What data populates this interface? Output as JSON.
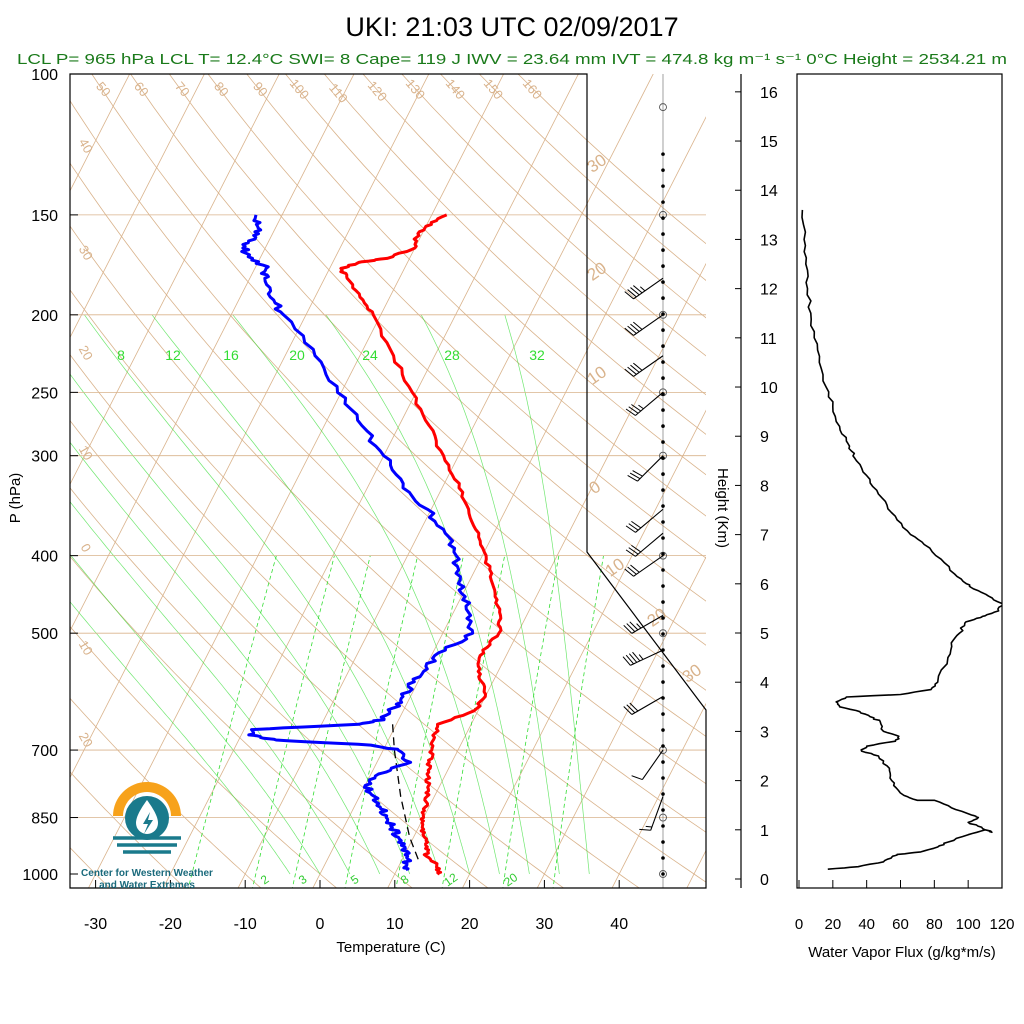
{
  "title": "UKI: 21:03 UTC 02/09/2017",
  "subtitle": "LCL P= 965 hPa  LCL T= 12.4°C  SWI= 8  Cape= 119 J  IWV = 23.64 mm  IVT = 474.8 kg m⁻¹ s⁻¹  0°C Height = 2534.21 m",
  "logo_text": [
    "Center for Western Weather",
    "and Water Extremes"
  ],
  "colors": {
    "title": "#000000",
    "subtitle": "#1a7a1a",
    "temperature": "#ff0000",
    "dewpoint": "#0000ff",
    "isotherm": "#d9b38c",
    "mixing_ratio": "#33dd33",
    "moist_adiabat": "#33dd33",
    "dry_adiabat": "#d9b38c",
    "parcel": "#000000",
    "logo_orange": "#f7a21b",
    "logo_teal": "#1a7a8c"
  },
  "chart_data": [
    {
      "type": "line",
      "name": "skew-t",
      "xlabel": "Temperature (C)",
      "ylabel": "P (hPa)",
      "x_ticks": [
        "-30",
        "-20",
        "-10",
        "0",
        "10",
        "20",
        "30",
        "40"
      ],
      "y_ticks": [
        "100",
        "150",
        "200",
        "250",
        "300",
        "400",
        "500",
        "700",
        "850",
        "1000"
      ],
      "ylim": [
        1000,
        100
      ],
      "mixing_ratio_labels": [
        "2",
        "3",
        "5",
        "8",
        "12",
        "20"
      ],
      "moist_adiabat_labels": [
        "8",
        "12",
        "16",
        "20",
        "24",
        "28",
        "32"
      ],
      "dry_adiabat_labels": [
        "50",
        "60",
        "70",
        "80",
        "90",
        "100",
        "110",
        "120",
        "130",
        "140",
        "150",
        "160"
      ],
      "isotherm_labels_left": [
        "40",
        "30",
        "20",
        "10",
        "0",
        "10",
        "20"
      ],
      "isotherm_labels_right": [
        "30",
        "20",
        "10",
        "0",
        "10",
        "20",
        "30"
      ],
      "temperature": [
        [
          1000,
          16.0
        ],
        [
          990,
          15.5
        ],
        [
          975,
          15.0
        ],
        [
          950,
          13.0
        ],
        [
          925,
          12.5
        ],
        [
          900,
          11.5
        ],
        [
          875,
          10.5
        ],
        [
          850,
          10.0
        ],
        [
          825,
          9.5
        ],
        [
          800,
          9.0
        ],
        [
          775,
          8.5
        ],
        [
          750,
          7.5
        ],
        [
          725,
          7.0
        ],
        [
          700,
          6.5
        ],
        [
          675,
          6.0
        ],
        [
          650,
          5.5
        ],
        [
          625,
          9.5
        ],
        [
          600,
          10.0
        ],
        [
          575,
          8.5
        ],
        [
          550,
          7.0
        ],
        [
          525,
          6.5
        ],
        [
          500,
          7.5
        ],
        [
          475,
          6.5
        ],
        [
          450,
          4.5
        ],
        [
          425,
          2.5
        ],
        [
          400,
          0.5
        ],
        [
          375,
          -2.0
        ],
        [
          350,
          -5.0
        ],
        [
          325,
          -8.0
        ],
        [
          300,
          -12.0
        ],
        [
          275,
          -16.0
        ],
        [
          250,
          -20.5
        ],
        [
          225,
          -25.5
        ],
        [
          200,
          -31.0
        ],
        [
          190,
          -34.0
        ],
        [
          180,
          -37.0
        ],
        [
          175,
          -38.5
        ],
        [
          172,
          -36.5
        ],
        [
          170,
          -33.0
        ],
        [
          165,
          -30.0
        ],
        [
          160,
          -30.5
        ],
        [
          155,
          -30.0
        ],
        [
          150,
          -28.0
        ]
      ],
      "dewpoint": [
        [
          990,
          11.5
        ],
        [
          975,
          11.0
        ],
        [
          950,
          10.5
        ],
        [
          925,
          9.5
        ],
        [
          900,
          8.0
        ],
        [
          875,
          6.5
        ],
        [
          850,
          5.0
        ],
        [
          825,
          3.5
        ],
        [
          800,
          2.0
        ],
        [
          775,
          0.0
        ],
        [
          750,
          1.0
        ],
        [
          725,
          4.5
        ],
        [
          700,
          2.0
        ],
        [
          690,
          -2.0
        ],
        [
          680,
          -15.0
        ],
        [
          670,
          -19.0
        ],
        [
          660,
          -19.0
        ],
        [
          650,
          -5.0
        ],
        [
          640,
          -2.0
        ],
        [
          620,
          -1.5
        ],
        [
          600,
          -1.0
        ],
        [
          575,
          -0.5
        ],
        [
          550,
          0.0
        ],
        [
          525,
          1.5
        ],
        [
          500,
          4.0
        ],
        [
          475,
          2.5
        ],
        [
          450,
          0.5
        ],
        [
          425,
          -1.5
        ],
        [
          400,
          -3.5
        ],
        [
          375,
          -6.5
        ],
        [
          350,
          -10.5
        ],
        [
          325,
          -15.5
        ],
        [
          300,
          -20.0
        ],
        [
          275,
          -25.0
        ],
        [
          250,
          -30.5
        ],
        [
          225,
          -36.0
        ],
        [
          200,
          -43.0
        ],
        [
          190,
          -46.0
        ],
        [
          180,
          -48.0
        ],
        [
          175,
          -48.5
        ],
        [
          170,
          -51.0
        ],
        [
          165,
          -53.0
        ],
        [
          160,
          -52.0
        ],
        [
          155,
          -52.5
        ],
        [
          150,
          -53.5
        ]
      ],
      "parcel": [
        [
          650,
          -0.5
        ],
        [
          700,
          1.5
        ],
        [
          800,
          5.5
        ],
        [
          900,
          9.5
        ],
        [
          965,
          12.4
        ]
      ],
      "wind_barbs": [
        {
          "p": 180,
          "dir": 235,
          "spd": 45
        },
        {
          "p": 200,
          "dir": 235,
          "spd": 40
        },
        {
          "p": 225,
          "dir": 235,
          "spd": 40
        },
        {
          "p": 250,
          "dir": 230,
          "spd": 35
        },
        {
          "p": 300,
          "dir": 225,
          "spd": 30
        },
        {
          "p": 350,
          "dir": 230,
          "spd": 30
        },
        {
          "p": 375,
          "dir": 230,
          "spd": 30
        },
        {
          "p": 400,
          "dir": 235,
          "spd": 30
        },
        {
          "p": 475,
          "dir": 240,
          "spd": 35
        },
        {
          "p": 525,
          "dir": 245,
          "spd": 45
        },
        {
          "p": 600,
          "dir": 240,
          "spd": 30
        },
        {
          "p": 700,
          "dir": 215,
          "spd": 10
        },
        {
          "p": 800,
          "dir": 200,
          "spd": 15
        }
      ]
    },
    {
      "type": "line",
      "name": "water-vapor-flux",
      "xlabel": "Water Vapor Flux (g/kg*m/s)",
      "ylabel": "Height (Km)",
      "xlim": [
        0,
        120
      ],
      "ylim": [
        0,
        16.5
      ],
      "x_ticks": [
        "0",
        "20",
        "40",
        "60",
        "80",
        "100",
        "120"
      ],
      "y_ticks": [
        "0",
        "1",
        "2",
        "3",
        "4",
        "5",
        "6",
        "7",
        "8",
        "9",
        "10",
        "11",
        "12",
        "13",
        "14",
        "15",
        "16"
      ],
      "profile": [
        [
          17,
          0.2
        ],
        [
          35,
          0.25
        ],
        [
          50,
          0.35
        ],
        [
          55,
          0.45
        ],
        [
          58,
          0.5
        ],
        [
          72,
          0.55
        ],
        [
          82,
          0.65
        ],
        [
          88,
          0.75
        ],
        [
          100,
          0.9
        ],
        [
          110,
          1.0
        ],
        [
          114,
          0.95
        ],
        [
          108,
          1.05
        ],
        [
          100,
          1.15
        ],
        [
          106,
          1.25
        ],
        [
          102,
          1.3
        ],
        [
          90,
          1.45
        ],
        [
          80,
          1.6
        ],
        [
          70,
          1.6
        ],
        [
          62,
          1.7
        ],
        [
          56,
          1.9
        ],
        [
          54,
          2.1
        ],
        [
          52,
          2.3
        ],
        [
          47,
          2.5
        ],
        [
          37,
          2.6
        ],
        [
          40,
          2.7
        ],
        [
          57,
          2.8
        ],
        [
          59,
          2.9
        ],
        [
          50,
          3.0
        ],
        [
          48,
          3.2
        ],
        [
          42,
          3.3
        ],
        [
          36,
          3.4
        ],
        [
          24,
          3.5
        ],
        [
          22,
          3.6
        ],
        [
          28,
          3.7
        ],
        [
          60,
          3.75
        ],
        [
          78,
          3.85
        ],
        [
          82,
          4.0
        ],
        [
          88,
          4.5
        ],
        [
          90,
          4.8
        ],
        [
          95,
          5.0
        ],
        [
          98,
          5.2
        ],
        [
          105,
          5.3
        ],
        [
          110,
          5.35
        ],
        [
          118,
          5.45
        ],
        [
          120,
          5.6
        ],
        [
          112,
          5.75
        ],
        [
          103,
          5.9
        ],
        [
          99,
          6.0
        ],
        [
          92,
          6.2
        ],
        [
          84,
          6.5
        ],
        [
          74,
          6.8
        ],
        [
          66,
          7.0
        ],
        [
          58,
          7.3
        ],
        [
          52,
          7.6
        ],
        [
          46,
          7.9
        ],
        [
          40,
          8.2
        ],
        [
          34,
          8.5
        ],
        [
          31,
          8.7
        ],
        [
          28,
          8.9
        ],
        [
          24,
          9.2
        ],
        [
          20,
          9.6
        ],
        [
          16,
          10.0
        ],
        [
          12,
          10.5
        ],
        [
          9,
          11.0
        ],
        [
          7,
          11.5
        ],
        [
          5,
          12.0
        ],
        [
          4,
          12.5
        ],
        [
          3,
          13.0
        ],
        [
          2,
          13.6
        ]
      ]
    }
  ]
}
